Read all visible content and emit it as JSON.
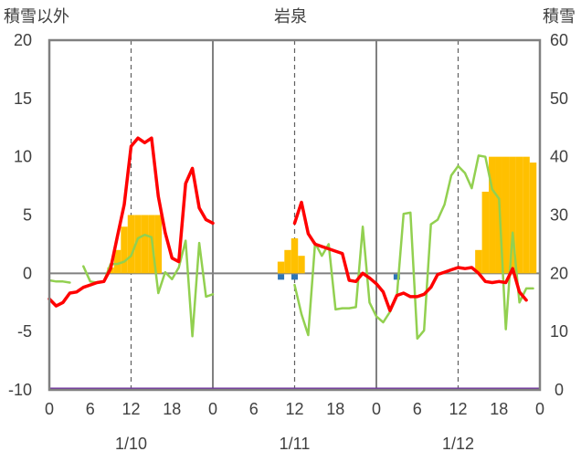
{
  "chart_data": {
    "type": "bar",
    "title": "岩泉",
    "ylabel_left": "積雪以外",
    "ylabel_right": "積雪",
    "ylim_left": [
      -10,
      20
    ],
    "ylim_right": [
      0,
      60
    ],
    "yticks_left": [
      "20",
      "15",
      "10",
      "5",
      "0",
      "-5",
      "-10"
    ],
    "yticks_right": [
      "60",
      "50",
      "40",
      "30",
      "20",
      "10",
      "0"
    ],
    "x_hours": [
      0,
      6,
      12,
      18,
      0,
      6,
      12,
      18,
      0,
      6,
      12,
      18,
      0
    ],
    "xtick_labels": [
      "0",
      "6",
      "12",
      "18",
      "0",
      "6",
      "12",
      "18",
      "0",
      "6",
      "12",
      "18",
      "0"
    ],
    "day_labels": [
      "1/10",
      "1/11",
      "1/12"
    ],
    "grid": true,
    "colors": {
      "snow_depth": "#ffc000",
      "temperature": "#ff0000",
      "wind": "#92d050",
      "precip": "#2e75b6",
      "baseline": "#7030a0",
      "frame": "#808080"
    },
    "series": [
      {
        "key": "snow_depth",
        "axis": "right",
        "points": [
          [
            9,
            21
          ],
          [
            10,
            24
          ],
          [
            11,
            28
          ],
          [
            12,
            30
          ],
          [
            13,
            30
          ],
          [
            14,
            30
          ],
          [
            15,
            30
          ],
          [
            16,
            30
          ],
          [
            34,
            22
          ],
          [
            35,
            24
          ],
          [
            36,
            26
          ],
          [
            37,
            23
          ],
          [
            63,
            24
          ],
          [
            64,
            34
          ],
          [
            65,
            40
          ],
          [
            66,
            40
          ],
          [
            67,
            40
          ],
          [
            68,
            40
          ],
          [
            69,
            40
          ],
          [
            70,
            40
          ],
          [
            71,
            39
          ]
        ]
      },
      {
        "key": "temperature",
        "axis": "left",
        "points": [
          [
            0,
            -2.2
          ],
          [
            1,
            -2.8
          ],
          [
            2,
            -2.5
          ],
          [
            3,
            -1.7
          ],
          [
            4,
            -1.6
          ],
          [
            5,
            -1.2
          ],
          [
            6,
            -1.0
          ],
          [
            7,
            -0.8
          ],
          [
            8,
            -0.7
          ],
          [
            9,
            0.4
          ],
          [
            10,
            3.2
          ],
          [
            11,
            5.9
          ],
          [
            12,
            10.9
          ],
          [
            13,
            11.6
          ],
          [
            14,
            11.2
          ],
          [
            15,
            11.6
          ],
          [
            16,
            6.6
          ],
          [
            17,
            3.5
          ],
          [
            18,
            1.3
          ],
          [
            19,
            1.0
          ],
          [
            20,
            7.7
          ],
          [
            21,
            9.0
          ],
          [
            22,
            5.6
          ],
          [
            23,
            4.6
          ],
          [
            24,
            4.3
          ],
          null,
          [
            36,
            4.3
          ],
          [
            37,
            6.1
          ],
          [
            38,
            3.4
          ],
          [
            39,
            2.5
          ],
          [
            40,
            2.3
          ],
          [
            41,
            2.1
          ],
          [
            42,
            1.9
          ],
          [
            43,
            1.7
          ],
          [
            44,
            -0.6
          ],
          [
            45,
            -0.7
          ],
          [
            46,
            0.0
          ],
          [
            47,
            -0.4
          ],
          [
            48,
            -0.9
          ],
          [
            49,
            -1.6
          ],
          [
            50,
            -3.2
          ],
          [
            51,
            -1.9
          ],
          [
            52,
            -1.7
          ],
          [
            53,
            -2.0
          ],
          [
            54,
            -2.0
          ],
          [
            55,
            -1.8
          ],
          [
            56,
            -1.2
          ],
          [
            57,
            -0.1
          ],
          [
            58,
            0.1
          ],
          [
            59,
            0.3
          ],
          [
            60,
            0.5
          ],
          [
            61,
            0.4
          ],
          [
            62,
            0.5
          ],
          [
            63,
            0.0
          ],
          [
            64,
            -0.7
          ],
          [
            65,
            -0.8
          ],
          [
            66,
            -0.7
          ],
          [
            67,
            -0.8
          ],
          [
            68,
            0.4
          ],
          [
            69,
            -1.6
          ],
          [
            70,
            -2.3
          ]
        ]
      },
      {
        "key": "wind",
        "axis": "left",
        "points": [
          [
            0,
            -0.6
          ],
          [
            1,
            -0.7
          ],
          [
            2,
            -0.7
          ],
          [
            3,
            -0.8
          ],
          null,
          [
            5,
            0.6
          ],
          [
            6,
            -0.7
          ],
          [
            7,
            -0.8
          ],
          [
            8,
            -0.7
          ],
          [
            9,
            0.8
          ],
          [
            10,
            0.8
          ],
          [
            11,
            1.0
          ],
          [
            12,
            1.5
          ],
          [
            13,
            3.0
          ],
          [
            14,
            3.3
          ],
          [
            15,
            3.1
          ],
          [
            16,
            -1.7
          ],
          [
            17,
            0.1
          ],
          [
            18,
            -0.5
          ],
          [
            19,
            0.5
          ],
          [
            20,
            2.8
          ],
          [
            21,
            -5.4
          ],
          [
            22,
            2.6
          ],
          [
            23,
            -2.0
          ],
          [
            24,
            -1.8
          ],
          null,
          [
            36,
            -1.0
          ],
          [
            37,
            -3.5
          ],
          [
            38,
            -5.3
          ],
          [
            39,
            2.6
          ],
          [
            40,
            1.5
          ],
          [
            41,
            2.5
          ],
          [
            42,
            -3.1
          ],
          [
            43,
            -3.0
          ],
          [
            44,
            -3.0
          ],
          [
            45,
            -2.9
          ],
          [
            46,
            4.0
          ],
          [
            47,
            -2.5
          ],
          [
            48,
            -3.7
          ],
          [
            49,
            -4.2
          ],
          [
            50,
            -3.3
          ],
          [
            51,
            -2.0
          ],
          [
            52,
            5.1
          ],
          [
            53,
            5.2
          ],
          [
            54,
            -5.6
          ],
          [
            55,
            -4.9
          ],
          [
            56,
            4.2
          ],
          [
            57,
            4.6
          ],
          [
            58,
            5.9
          ],
          [
            59,
            8.4
          ],
          [
            60,
            9.2
          ],
          [
            61,
            8.6
          ],
          [
            62,
            7.3
          ],
          [
            63,
            10.1
          ],
          [
            64,
            10.0
          ],
          [
            65,
            7.2
          ],
          [
            66,
            6.4
          ],
          [
            67,
            -4.8
          ],
          [
            68,
            3.5
          ],
          [
            69,
            -2.5
          ],
          [
            70,
            -1.3
          ],
          [
            71,
            -1.3
          ]
        ]
      },
      {
        "key": "precip",
        "axis": "left",
        "points": [
          [
            34,
            -0.4
          ],
          [
            36,
            -0.4
          ],
          [
            51,
            -0.4
          ]
        ]
      }
    ]
  }
}
